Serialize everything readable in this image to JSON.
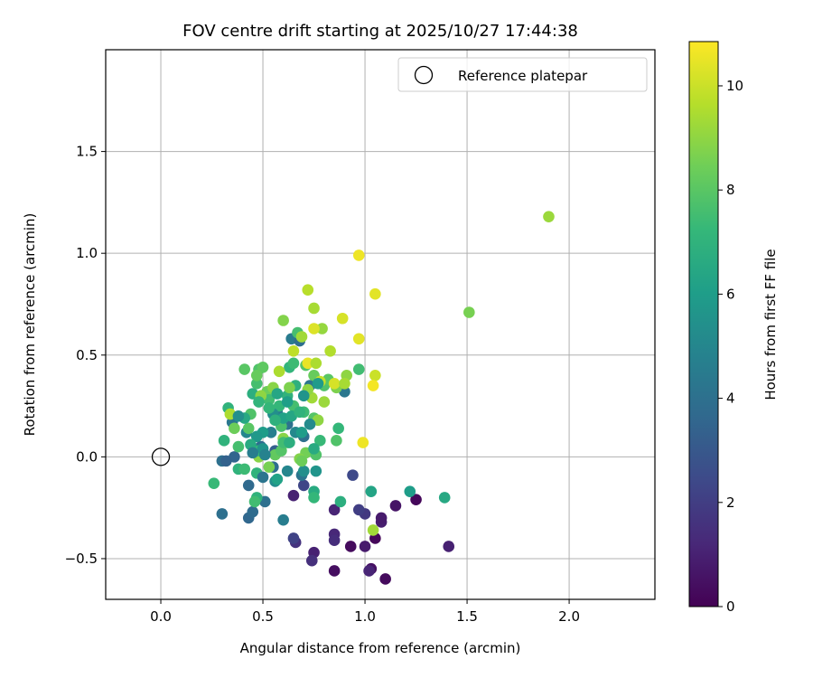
{
  "chart_data": {
    "type": "scatter",
    "title": "FOV centre drift starting at 2025/10/27 17:44:38",
    "xlabel": "Angular distance from reference (arcmin)",
    "ylabel": "Rotation from reference (arcmin)",
    "xlim": [
      -0.27,
      2.42
    ],
    "ylim": [
      -0.7,
      2.0
    ],
    "xticks": [
      0.0,
      0.5,
      1.0,
      1.5,
      2.0
    ],
    "xtick_labels": [
      "0.0",
      "0.5",
      "1.0",
      "1.5",
      "2.0"
    ],
    "yticks": [
      -0.5,
      0.0,
      0.5,
      1.0,
      1.5
    ],
    "ytick_labels": [
      "−0.5",
      "0.0",
      "0.5",
      "1.0",
      "1.5"
    ],
    "grid": true,
    "legend": {
      "position": "top-right",
      "entries": [
        "Reference platepar"
      ]
    },
    "reference_point": {
      "x": 0.0,
      "y": 0.0,
      "label": "Reference platepar"
    },
    "colorbar": {
      "label": "Hours from first FF file",
      "colormap": "viridis",
      "min": 0,
      "max": 10.85,
      "ticks": [
        0,
        2,
        4,
        6,
        8,
        10
      ],
      "tick_labels": [
        "0",
        "2",
        "4",
        "6",
        "8",
        "10"
      ]
    },
    "colormap_stops": [
      "#440154",
      "#482878",
      "#3e4989",
      "#31688e",
      "#26828e",
      "#1f9e89",
      "#35b779",
      "#6ece58",
      "#b5de2b",
      "#fde725"
    ],
    "points": [
      {
        "x": 0.93,
        "y": -0.44,
        "t": 0.3
      },
      {
        "x": 0.85,
        "y": -0.56,
        "t": 0.4
      },
      {
        "x": 1.03,
        "y": -0.55,
        "t": 0.5
      },
      {
        "x": 1.1,
        "y": -0.6,
        "t": 0.3
      },
      {
        "x": 1.05,
        "y": -0.4,
        "t": 0.2
      },
      {
        "x": 1.25,
        "y": -0.21,
        "t": 0.2
      },
      {
        "x": 1.15,
        "y": -0.24,
        "t": 0.6
      },
      {
        "x": 1.41,
        "y": -0.44,
        "t": 1.0
      },
      {
        "x": 1.0,
        "y": -0.44,
        "t": 0.8
      },
      {
        "x": 1.08,
        "y": -0.32,
        "t": 0.9
      },
      {
        "x": 0.75,
        "y": -0.47,
        "t": 1.0
      },
      {
        "x": 0.74,
        "y": -0.51,
        "t": 1.5
      },
      {
        "x": 0.85,
        "y": -0.38,
        "t": 1.2
      },
      {
        "x": 0.66,
        "y": -0.42,
        "t": 1.6
      },
      {
        "x": 0.65,
        "y": -0.4,
        "t": 2.2
      },
      {
        "x": 0.85,
        "y": -0.41,
        "t": 1.4
      },
      {
        "x": 0.85,
        "y": -0.26,
        "t": 1.1
      },
      {
        "x": 1.0,
        "y": -0.28,
        "t": 1.8
      },
      {
        "x": 0.97,
        "y": -0.26,
        "t": 2.0
      },
      {
        "x": 0.65,
        "y": -0.19,
        "t": 1.0
      },
      {
        "x": 0.7,
        "y": -0.14,
        "t": 2.3
      },
      {
        "x": 0.94,
        "y": -0.09,
        "t": 2.4
      },
      {
        "x": 1.02,
        "y": -0.56,
        "t": 1.1
      },
      {
        "x": 1.08,
        "y": -0.3,
        "t": 0.8
      },
      {
        "x": 0.3,
        "y": -0.28,
        "t": 4.0
      },
      {
        "x": 0.43,
        "y": -0.3,
        "t": 3.6
      },
      {
        "x": 0.45,
        "y": -0.27,
        "t": 3.8
      },
      {
        "x": 0.51,
        "y": -0.22,
        "t": 4.0
      },
      {
        "x": 0.6,
        "y": -0.31,
        "t": 4.6
      },
      {
        "x": 0.43,
        "y": -0.14,
        "t": 3.7
      },
      {
        "x": 0.3,
        "y": -0.02,
        "t": 4.0
      },
      {
        "x": 0.36,
        "y": 0.0,
        "t": 3.5
      },
      {
        "x": 0.49,
        "y": 0.05,
        "t": 3.8
      },
      {
        "x": 0.56,
        "y": 0.03,
        "t": 3.3
      },
      {
        "x": 0.55,
        "y": -0.05,
        "t": 3.9
      },
      {
        "x": 0.69,
        "y": -0.09,
        "t": 4.2
      },
      {
        "x": 0.7,
        "y": 0.1,
        "t": 4.0
      },
      {
        "x": 0.64,
        "y": 0.58,
        "t": 4.5
      },
      {
        "x": 0.68,
        "y": 0.57,
        "t": 3.9
      },
      {
        "x": 0.73,
        "y": 0.35,
        "t": 4.2
      },
      {
        "x": 0.9,
        "y": 0.32,
        "t": 4.3
      },
      {
        "x": 0.62,
        "y": 0.16,
        "t": 4.1
      },
      {
        "x": 0.57,
        "y": 0.22,
        "t": 4.5
      },
      {
        "x": 0.35,
        "y": 0.17,
        "t": 4.3
      },
      {
        "x": 0.42,
        "y": 0.12,
        "t": 5.0
      },
      {
        "x": 0.54,
        "y": 0.12,
        "t": 4.7
      },
      {
        "x": 0.66,
        "y": 0.12,
        "t": 5.1
      },
      {
        "x": 0.56,
        "y": -0.12,
        "t": 5.3
      },
      {
        "x": 0.62,
        "y": -0.07,
        "t": 5.0
      },
      {
        "x": 0.7,
        "y": -0.07,
        "t": 5.4
      },
      {
        "x": 0.76,
        "y": -0.07,
        "t": 5.6
      },
      {
        "x": 0.75,
        "y": -0.17,
        "t": 6.6
      },
      {
        "x": 0.75,
        "y": -0.2,
        "t": 7.2
      },
      {
        "x": 0.88,
        "y": -0.22,
        "t": 6.8
      },
      {
        "x": 1.03,
        "y": -0.17,
        "t": 6.3
      },
      {
        "x": 1.22,
        "y": -0.17,
        "t": 6.0
      },
      {
        "x": 1.39,
        "y": -0.2,
        "t": 6.5
      },
      {
        "x": 0.26,
        "y": -0.13,
        "t": 7.3
      },
      {
        "x": 0.38,
        "y": -0.06,
        "t": 7.0
      },
      {
        "x": 0.41,
        "y": -0.06,
        "t": 7.4
      },
      {
        "x": 0.47,
        "y": -0.08,
        "t": 7.0
      },
      {
        "x": 0.47,
        "y": -0.2,
        "t": 7.0
      },
      {
        "x": 0.46,
        "y": -0.22,
        "t": 7.5
      },
      {
        "x": 0.31,
        "y": 0.08,
        "t": 7.0
      },
      {
        "x": 0.38,
        "y": 0.05,
        "t": 7.6
      },
      {
        "x": 0.44,
        "y": 0.21,
        "t": 7.8
      },
      {
        "x": 0.45,
        "y": 0.31,
        "t": 6.8
      },
      {
        "x": 0.33,
        "y": 0.24,
        "t": 7.0
      },
      {
        "x": 0.41,
        "y": 0.43,
        "t": 8.0
      },
      {
        "x": 0.48,
        "y": 0.43,
        "t": 7.8
      },
      {
        "x": 0.5,
        "y": 0.44,
        "t": 8.1
      },
      {
        "x": 0.47,
        "y": 0.36,
        "t": 7.6
      },
      {
        "x": 0.52,
        "y": 0.32,
        "t": 8.4
      },
      {
        "x": 0.53,
        "y": 0.28,
        "t": 7.5
      },
      {
        "x": 0.58,
        "y": 0.25,
        "t": 7.2
      },
      {
        "x": 0.62,
        "y": 0.3,
        "t": 7.0
      },
      {
        "x": 0.66,
        "y": 0.35,
        "t": 6.9
      },
      {
        "x": 0.63,
        "y": 0.44,
        "t": 7.1
      },
      {
        "x": 0.65,
        "y": 0.46,
        "t": 7.4
      },
      {
        "x": 0.67,
        "y": 0.61,
        "t": 7.6
      },
      {
        "x": 0.71,
        "y": 0.45,
        "t": 7.9
      },
      {
        "x": 0.75,
        "y": 0.4,
        "t": 8.3
      },
      {
        "x": 0.8,
        "y": 0.35,
        "t": 7.8
      },
      {
        "x": 0.82,
        "y": 0.38,
        "t": 8.0
      },
      {
        "x": 0.86,
        "y": 0.34,
        "t": 8.7
      },
      {
        "x": 0.97,
        "y": 0.43,
        "t": 7.5
      },
      {
        "x": 0.56,
        "y": 0.01,
        "t": 8.2
      },
      {
        "x": 0.59,
        "y": 0.03,
        "t": 7.9
      },
      {
        "x": 0.62,
        "y": 0.07,
        "t": 8.1
      },
      {
        "x": 0.59,
        "y": 0.15,
        "t": 7.7
      },
      {
        "x": 0.65,
        "y": 0.25,
        "t": 7.6
      },
      {
        "x": 0.7,
        "y": 0.22,
        "t": 7.4
      },
      {
        "x": 0.75,
        "y": 0.19,
        "t": 7.9
      },
      {
        "x": 0.78,
        "y": 0.08,
        "t": 7.3
      },
      {
        "x": 0.86,
        "y": 0.08,
        "t": 7.8
      },
      {
        "x": 0.87,
        "y": 0.14,
        "t": 7.2
      },
      {
        "x": 0.71,
        "y": 0.02,
        "t": 8.5
      },
      {
        "x": 0.76,
        "y": 0.01,
        "t": 7.8
      },
      {
        "x": 0.68,
        "y": -0.01,
        "t": 8.8
      },
      {
        "x": 0.53,
        "y": -0.05,
        "t": 8.6
      },
      {
        "x": 0.48,
        "y": 0.0,
        "t": 8.9
      },
      {
        "x": 0.48,
        "y": 0.03,
        "t": 7.2
      },
      {
        "x": 0.49,
        "y": 0.3,
        "t": 9.0
      },
      {
        "x": 0.58,
        "y": 0.42,
        "t": 9.5
      },
      {
        "x": 0.6,
        "y": 0.67,
        "t": 8.8
      },
      {
        "x": 0.72,
        "y": 0.82,
        "t": 9.7
      },
      {
        "x": 0.75,
        "y": 0.73,
        "t": 9.4
      },
      {
        "x": 0.69,
        "y": 0.59,
        "t": 9.3
      },
      {
        "x": 0.79,
        "y": 0.63,
        "t": 9.1
      },
      {
        "x": 0.75,
        "y": 0.63,
        "t": 10.3
      },
      {
        "x": 0.89,
        "y": 0.68,
        "t": 10.2
      },
      {
        "x": 0.83,
        "y": 0.52,
        "t": 9.6
      },
      {
        "x": 0.65,
        "y": 0.52,
        "t": 9.8
      },
      {
        "x": 0.72,
        "y": 0.46,
        "t": 10.5
      },
      {
        "x": 0.76,
        "y": 0.46,
        "t": 9.5
      },
      {
        "x": 0.78,
        "y": 0.37,
        "t": 9.9
      },
      {
        "x": 0.85,
        "y": 0.36,
        "t": 10.2
      },
      {
        "x": 0.91,
        "y": 0.4,
        "t": 9.0
      },
      {
        "x": 0.9,
        "y": 0.36,
        "t": 9.4
      },
      {
        "x": 0.8,
        "y": 0.27,
        "t": 9.2
      },
      {
        "x": 0.74,
        "y": 0.29,
        "t": 9.3
      },
      {
        "x": 0.72,
        "y": 0.33,
        "t": 9.0
      },
      {
        "x": 0.77,
        "y": 0.18,
        "t": 9.0
      },
      {
        "x": 0.97,
        "y": 0.58,
        "t": 10.4
      },
      {
        "x": 0.97,
        "y": 0.99,
        "t": 10.6
      },
      {
        "x": 1.05,
        "y": 0.8,
        "t": 10.4
      },
      {
        "x": 1.05,
        "y": 0.4,
        "t": 10.0
      },
      {
        "x": 1.04,
        "y": 0.35,
        "t": 10.7
      },
      {
        "x": 0.99,
        "y": 0.07,
        "t": 10.6
      },
      {
        "x": 1.04,
        "y": -0.36,
        "t": 9.3
      },
      {
        "x": 1.51,
        "y": 0.71,
        "t": 8.6
      },
      {
        "x": 1.9,
        "y": 1.18,
        "t": 9.2
      },
      {
        "x": 0.34,
        "y": 0.21,
        "t": 9.5
      },
      {
        "x": 0.47,
        "y": 0.4,
        "t": 8.3
      },
      {
        "x": 0.55,
        "y": 0.34,
        "t": 8.9
      },
      {
        "x": 0.63,
        "y": 0.34,
        "t": 8.7
      },
      {
        "x": 0.6,
        "y": 0.09,
        "t": 8.9
      },
      {
        "x": 0.69,
        "y": -0.02,
        "t": 8.4
      },
      {
        "x": 0.36,
        "y": 0.14,
        "t": 8.4
      },
      {
        "x": 0.43,
        "y": 0.14,
        "t": 8.0
      },
      {
        "x": 0.6,
        "y": 0.07,
        "t": 7.5
      },
      {
        "x": 0.6,
        "y": 0.19,
        "t": 6.2
      },
      {
        "x": 0.5,
        "y": 0.12,
        "t": 6.0
      },
      {
        "x": 0.55,
        "y": 0.21,
        "t": 5.4
      },
      {
        "x": 0.47,
        "y": 0.1,
        "t": 5.8
      },
      {
        "x": 0.5,
        "y": 0.04,
        "t": 5.6
      },
      {
        "x": 0.7,
        "y": 0.3,
        "t": 5.6
      },
      {
        "x": 0.77,
        "y": 0.36,
        "t": 5.9
      },
      {
        "x": 0.64,
        "y": 0.2,
        "t": 6.4
      },
      {
        "x": 0.68,
        "y": 0.22,
        "t": 7.0
      },
      {
        "x": 0.53,
        "y": 0.24,
        "t": 7.2
      },
      {
        "x": 0.44,
        "y": 0.06,
        "t": 6.6
      },
      {
        "x": 0.45,
        "y": 0.02,
        "t": 4.6
      },
      {
        "x": 0.32,
        "y": -0.02,
        "t": 3.4
      },
      {
        "x": 0.5,
        "y": -0.1,
        "t": 4.2
      },
      {
        "x": 0.51,
        "y": 0.01,
        "t": 4.8
      },
      {
        "x": 0.57,
        "y": -0.11,
        "t": 6.2
      },
      {
        "x": 0.63,
        "y": 0.07,
        "t": 6.8
      },
      {
        "x": 0.69,
        "y": 0.12,
        "t": 6.0
      },
      {
        "x": 0.73,
        "y": 0.16,
        "t": 5.2
      },
      {
        "x": 0.75,
        "y": 0.04,
        "t": 6.6
      },
      {
        "x": 0.56,
        "y": 0.18,
        "t": 6.9
      },
      {
        "x": 0.41,
        "y": 0.19,
        "t": 6.5
      },
      {
        "x": 0.38,
        "y": 0.2,
        "t": 5.4
      },
      {
        "x": 0.62,
        "y": 0.27,
        "t": 6.1
      },
      {
        "x": 0.57,
        "y": 0.31,
        "t": 6.4
      },
      {
        "x": 0.48,
        "y": 0.27,
        "t": 7.1
      }
    ]
  }
}
